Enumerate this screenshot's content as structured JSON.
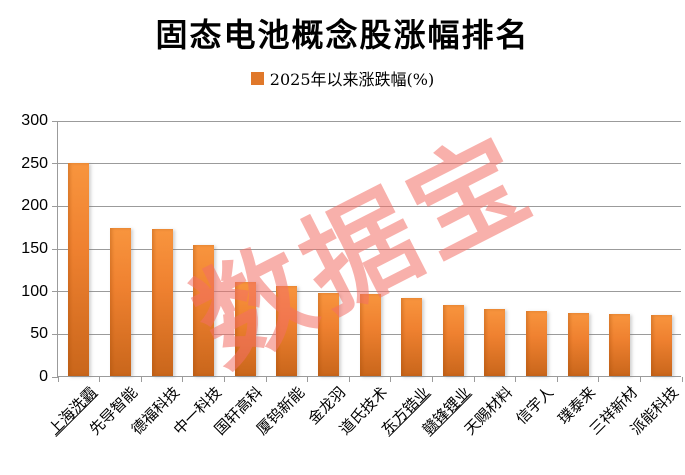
{
  "title": "固态电池概念股涨幅排名",
  "legend": {
    "label": "2025年以来涨跌幅(%)",
    "swatch_color": "#E0782A"
  },
  "watermark": {
    "text": "数据宝",
    "color": "#F26F66"
  },
  "chart_data": {
    "type": "bar",
    "title": "固态电池概念股涨幅排名",
    "series_name": "2025年以来涨跌幅(%)",
    "categories": [
      "上海洗霸",
      "先导智能",
      "德福科技",
      "中一科技",
      "国轩高科",
      "厦钨新能",
      "金龙羽",
      "道氏技术",
      "东方锆业",
      "赣锋锂业",
      "天赐材料",
      "信宇人",
      "璞泰来",
      "三祥新材",
      "派能科技"
    ],
    "values": [
      250,
      173,
      172,
      153,
      110,
      106,
      97,
      96,
      92,
      83,
      78,
      76,
      74,
      73,
      72
    ],
    "underlined_categories": [
      "上海洗霸",
      "东方锆业",
      "赣锋锂业"
    ],
    "xlabel": "",
    "ylabel": "",
    "ylim": [
      0,
      300
    ],
    "yticks": [
      0,
      50,
      100,
      150,
      200,
      250,
      300
    ],
    "grid": true,
    "legend_position": "top",
    "bar_color_top": "#F8953E",
    "bar_color_bottom": "#C9661B",
    "gridline_color": "#9B9B9B"
  }
}
